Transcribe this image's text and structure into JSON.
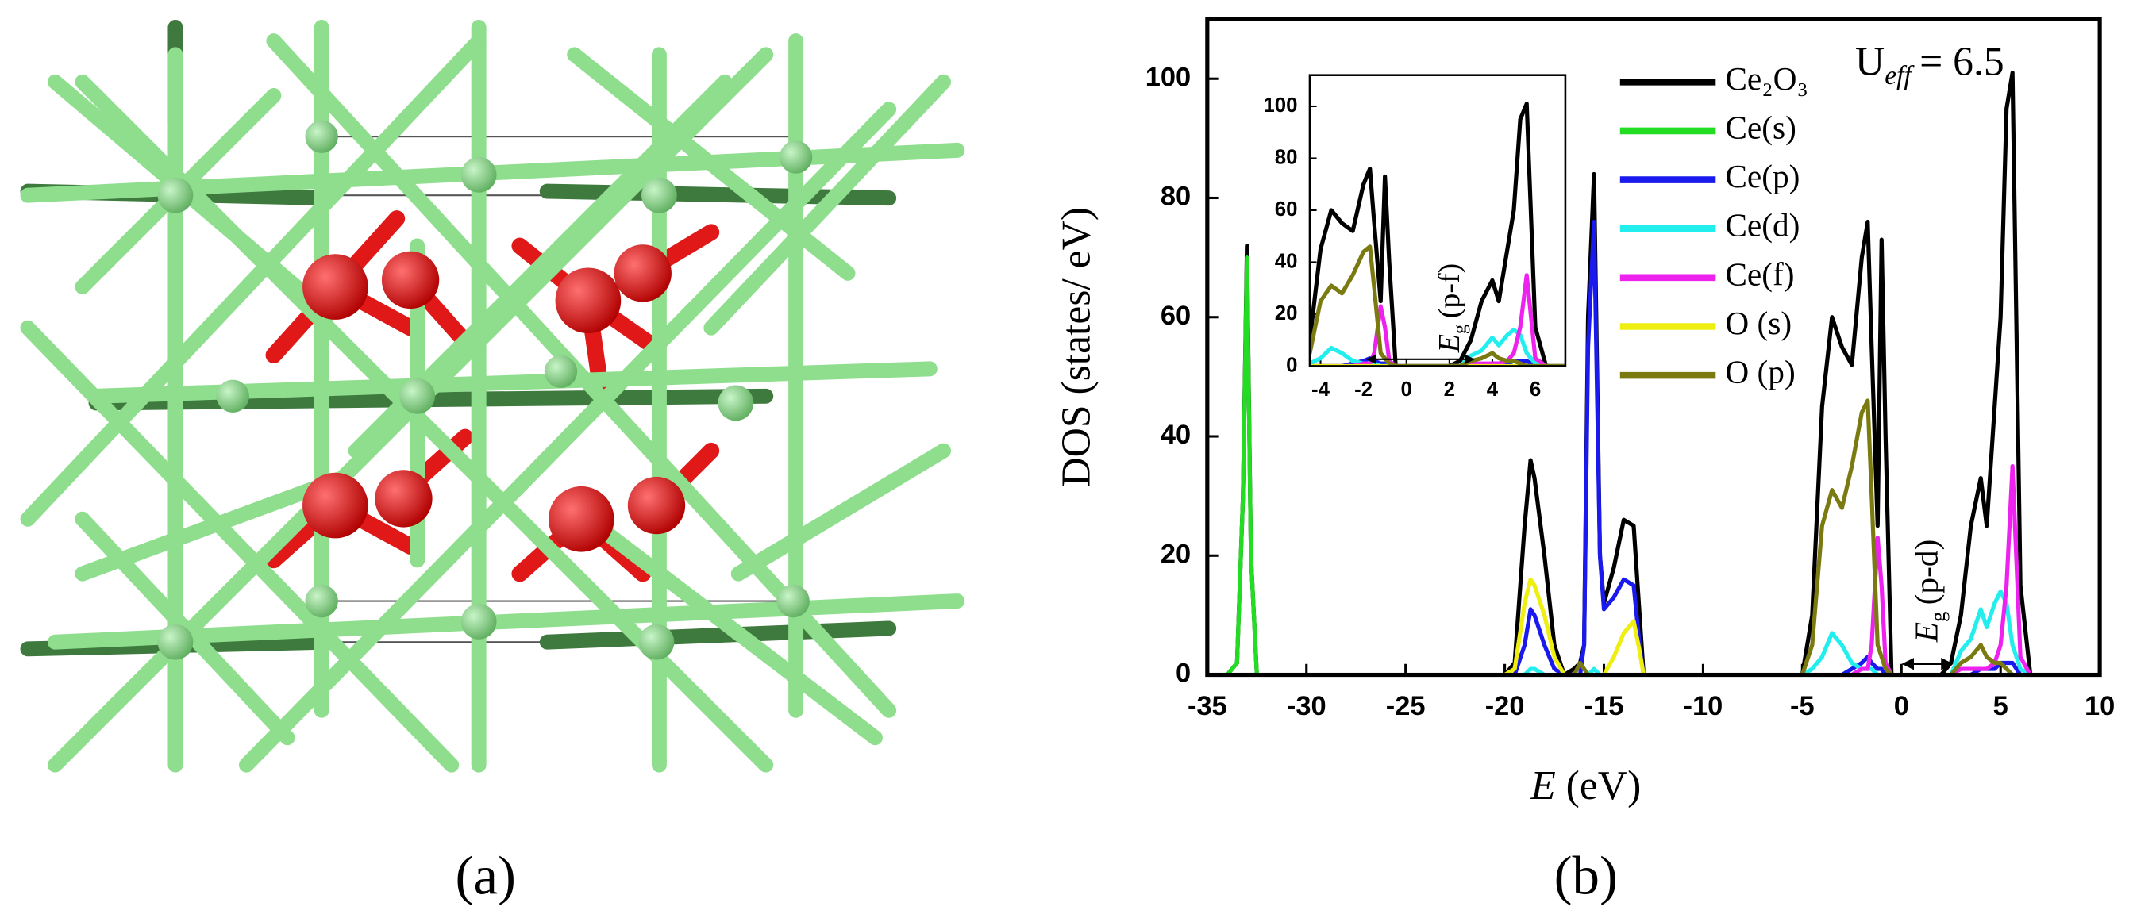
{
  "panel_labels": [
    "(a)",
    "(b)"
  ],
  "chart_data": [
    {
      "type": "line",
      "x": [
        -35,
        -34,
        -33.5,
        -33.2,
        -33,
        -32.8,
        -32.5,
        -32,
        -25,
        -20,
        -19.5,
        -19,
        -18.7,
        -18.5,
        -18,
        -17.5,
        -17,
        -16.5,
        -16.2,
        -16,
        -15.8,
        -15.5,
        -15.2,
        -15,
        -14.5,
        -14,
        -13.5,
        -13.2,
        -13,
        -12.5,
        -10,
        -5,
        -4.5,
        -4,
        -3.5,
        -3,
        -2.5,
        -2,
        -1.7,
        -1.5,
        -1.2,
        -1,
        -0.8,
        -0.5,
        0,
        1,
        2,
        2.5,
        3,
        3.5,
        4,
        4.3,
        4.7,
        5,
        5.3,
        5.6,
        6,
        6.5,
        8
      ],
      "series": [
        {
          "name": "Ce₂O₃",
          "color": "#000000",
          "values": [
            0,
            0,
            2,
            30,
            72,
            20,
            0,
            0,
            0,
            0,
            2,
            25,
            36,
            33,
            20,
            5,
            0,
            1,
            2,
            5,
            60,
            84,
            20,
            12,
            18,
            26,
            25,
            10,
            0,
            0,
            0,
            0,
            10,
            45,
            60,
            55,
            52,
            70,
            76,
            55,
            25,
            73,
            40,
            0,
            0,
            0,
            0,
            2,
            10,
            25,
            33,
            25,
            45,
            60,
            95,
            101,
            15,
            0,
            0
          ]
        },
        {
          "name": "Ce(s)",
          "color": "#22dd22",
          "values": [
            0,
            0,
            2,
            30,
            70,
            20,
            0,
            0,
            0,
            0,
            0,
            0,
            0,
            0,
            0,
            0,
            0,
            0,
            0,
            0,
            0,
            0,
            0,
            0,
            0,
            0,
            0,
            0,
            0,
            0,
            0,
            0,
            0,
            0,
            0,
            0,
            0,
            0,
            0,
            0,
            0,
            0,
            0,
            0,
            0,
            0,
            0,
            0,
            0,
            0,
            0,
            0,
            0,
            0,
            0,
            0,
            0,
            0,
            0
          ]
        },
        {
          "name": "Ce(p)",
          "color": "#1a1aee",
          "values": [
            0,
            0,
            0,
            0,
            0,
            0,
            0,
            0,
            0,
            0,
            0,
            5,
            11,
            10,
            5,
            1,
            0,
            0,
            0,
            5,
            55,
            76,
            20,
            11,
            13,
            16,
            15,
            5,
            0,
            0,
            0,
            0,
            0,
            0,
            0,
            0,
            1,
            2,
            3,
            2,
            1,
            1,
            0,
            0,
            0,
            0,
            0,
            0,
            0,
            0,
            1,
            1,
            1,
            2,
            2,
            2,
            0,
            0,
            0
          ]
        },
        {
          "name": "Ce(d)",
          "color": "#22eeee",
          "values": [
            0,
            0,
            0,
            0,
            0,
            0,
            0,
            0,
            0,
            0,
            0,
            0,
            1,
            1,
            0,
            0,
            0,
            0,
            0,
            0,
            0,
            1,
            0,
            0,
            0,
            0,
            0,
            0,
            0,
            0,
            0,
            0,
            1,
            3,
            7,
            5,
            2,
            1,
            1,
            1,
            0,
            0,
            0,
            0,
            0,
            0,
            0,
            0,
            4,
            6,
            11,
            8,
            12,
            14,
            12,
            5,
            1,
            0,
            0
          ]
        },
        {
          "name": "Ce(f)",
          "color": "#ee22ee",
          "values": [
            0,
            0,
            0,
            0,
            0,
            0,
            0,
            0,
            0,
            0,
            0,
            0,
            0,
            0,
            0,
            0,
            0,
            0,
            0,
            0,
            0,
            0,
            0,
            0,
            0,
            0,
            0,
            0,
            0,
            0,
            0,
            0,
            0,
            0,
            0,
            0,
            0,
            1,
            1,
            5,
            23,
            15,
            2,
            0,
            0,
            0,
            0,
            0,
            1,
            1,
            1,
            1,
            2,
            5,
            15,
            35,
            3,
            0,
            0
          ]
        },
        {
          "name": "O (s)",
          "color": "#eeee11",
          "values": [
            0,
            0,
            0,
            0,
            0,
            0,
            0,
            0,
            0,
            0,
            1,
            12,
            16,
            15,
            10,
            3,
            0,
            0,
            0,
            0,
            0,
            0,
            0,
            0,
            3,
            7,
            9,
            4,
            0,
            0,
            0,
            0,
            0,
            0,
            0,
            0,
            0,
            0,
            0,
            0,
            0,
            0,
            0,
            0,
            0,
            0,
            0,
            0,
            0,
            0,
            0,
            0,
            0,
            0,
            0,
            0,
            0,
            0,
            0
          ]
        },
        {
          "name": "O (p)",
          "color": "#7a7a10",
          "values": [
            0,
            0,
            0,
            0,
            0,
            0,
            0,
            0,
            0,
            0,
            0,
            0,
            0,
            0,
            0,
            0,
            0,
            0,
            2,
            1,
            0,
            0,
            0,
            0,
            0,
            0,
            0,
            0,
            0,
            0,
            0,
            0,
            5,
            25,
            31,
            28,
            35,
            44,
            46,
            30,
            5,
            3,
            1,
            0,
            0,
            0,
            0,
            0,
            2,
            3,
            5,
            3,
            2,
            2,
            1,
            0,
            0,
            0,
            0
          ]
        }
      ],
      "xlim": [
        -35,
        10
      ],
      "xticks": [
        -35,
        -30,
        -25,
        -20,
        -15,
        -10,
        -5,
        0,
        5,
        10
      ],
      "ylim": [
        0,
        110
      ],
      "yticks": [
        0,
        20,
        40,
        60,
        80,
        100
      ],
      "x_label": {
        "symbol": "E",
        "text": "(eV)"
      },
      "y_label": "DOS (states/ eV)",
      "annotations": [
        {
          "symbol": "U",
          "subscript": "eff",
          "text": "= 6.5"
        },
        {
          "symbol": "E",
          "subscript": "g",
          "text": "(p-d)"
        }
      ]
    },
    {
      "type": "line",
      "xlim": [
        -4.5,
        7.4
      ],
      "xticks": [
        -4,
        -2,
        0,
        2,
        4,
        6
      ],
      "ylim": [
        0,
        112
      ],
      "yticks": [
        0,
        20,
        40,
        60,
        80,
        100
      ],
      "annotations": [
        {
          "symbol": "E",
          "subscript": "g",
          "text": "(p-f)"
        }
      ]
    }
  ]
}
